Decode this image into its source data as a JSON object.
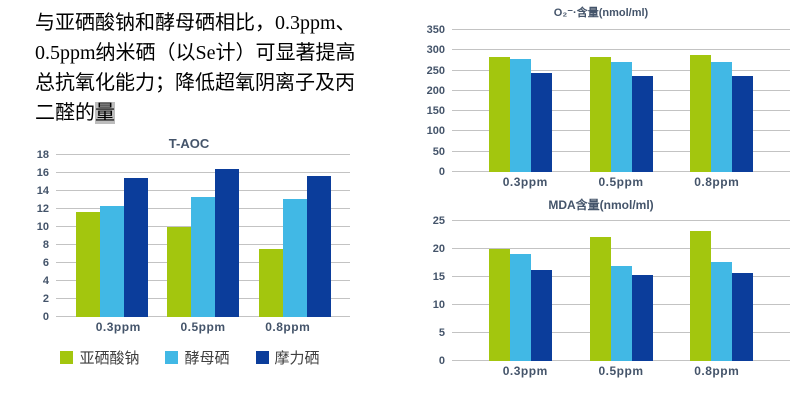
{
  "text_block": {
    "lines": [
      "与亚硒酸钠和酵母硒相比，0.3ppm、",
      "0.5ppm纳米硒（以Se计）可显著提高",
      "总抗氧化能力；降低超氧阴离子及丙",
      "二醛的"
    ],
    "highlight": "量"
  },
  "chart_data": [
    {
      "id": "taoc",
      "type": "bar",
      "title": "T-AOC",
      "categories": [
        "0.3ppm",
        "0.5ppm",
        "0.8ppm"
      ],
      "series": [
        {
          "name": "亚硒酸钠",
          "color": "#A3C60E",
          "values": [
            11.7,
            10.0,
            7.6
          ]
        },
        {
          "name": "酵母硒",
          "color": "#41B8E5",
          "values": [
            12.3,
            13.3,
            13.1
          ]
        },
        {
          "name": "摩力硒",
          "color": "#0B3D9B",
          "values": [
            15.4,
            16.5,
            15.7
          ]
        }
      ],
      "ylim": [
        0,
        18
      ],
      "ytick_step": 2,
      "yticks": [
        0,
        2,
        4,
        6,
        8,
        10,
        12,
        14,
        16,
        18
      ],
      "grid": true,
      "legend_position": "bottom"
    },
    {
      "id": "o2",
      "type": "bar",
      "title": "O₂⁻·含量(nmol/ml)",
      "categories": [
        "0.3ppm",
        "0.5ppm",
        "0.8ppm"
      ],
      "series": [
        {
          "name": "亚硒酸钠",
          "color": "#A3C60E",
          "values": [
            283,
            283,
            288
          ]
        },
        {
          "name": "酵母硒",
          "color": "#41B8E5",
          "values": [
            278,
            272,
            272
          ]
        },
        {
          "name": "摩力硒",
          "color": "#0B3D9B",
          "values": [
            243,
            237,
            237
          ]
        }
      ],
      "ylim": [
        0,
        350
      ],
      "ytick_step": 50,
      "yticks": [
        0,
        50,
        100,
        150,
        200,
        250,
        300,
        350
      ],
      "grid": true,
      "legend_position": "none"
    },
    {
      "id": "mda",
      "type": "bar",
      "title": "MDA含量(nmol/ml)",
      "categories": [
        "0.3ppm",
        "0.5ppm",
        "0.8ppm"
      ],
      "series": [
        {
          "name": "亚硒酸钠",
          "color": "#A3C60E",
          "values": [
            20.0,
            22.2,
            23.3
          ]
        },
        {
          "name": "酵母硒",
          "color": "#41B8E5",
          "values": [
            19.1,
            17.0,
            17.7
          ]
        },
        {
          "name": "摩力硒",
          "color": "#0B3D9B",
          "values": [
            16.2,
            15.4,
            15.8
          ]
        }
      ],
      "ylim": [
        0,
        25
      ],
      "ytick_step": 5,
      "yticks": [
        0,
        5,
        10,
        15,
        20,
        25
      ],
      "grid": true,
      "legend_position": "none"
    }
  ],
  "colors": {
    "sodium_selenite": "#A3C60E",
    "yeast_selenium": "#41B8E5",
    "moli_selenium": "#0B3D9B",
    "gridline": "#C3C3C3",
    "axis_label": "#44546A",
    "highlight_bg": "#BDBDBD"
  }
}
